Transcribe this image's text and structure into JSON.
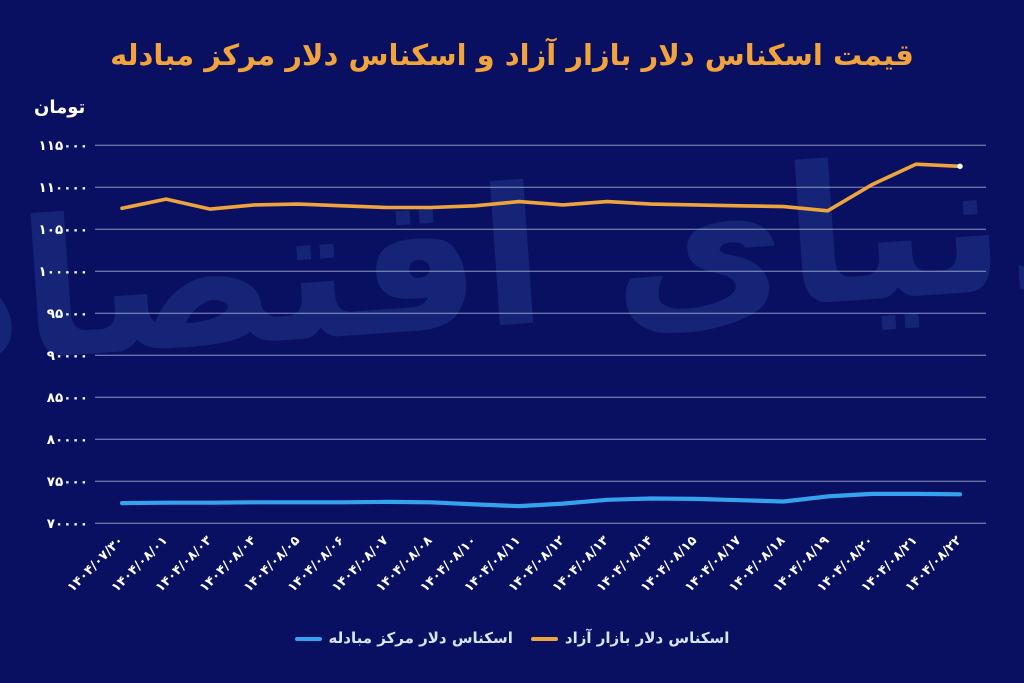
{
  "page": {
    "background": "#0A1061"
  },
  "header": {
    "title": "قیمت اسکناس دلار بازار آزاد و اسکناس دلار مرکز مبادله",
    "title_color": "#F2A43C"
  },
  "watermark": {
    "text": "دنیای اقتصاد",
    "color": "#18277A"
  },
  "chart_data": {
    "type": "line",
    "title": "قیمت اسکناس دلار بازار آزاد و اسکناس دلار مرکز مبادله",
    "xlabel": "",
    "ylabel": "تومان",
    "categories": [
      "۱۴۰۴/۰۷/۳۰",
      "۱۴۰۴/۰۸/۰۱",
      "۱۴۰۴/۰۸/۰۳",
      "۱۴۰۴/۰۸/۰۴",
      "۱۴۰۴/۰۸/۰۵",
      "۱۴۰۴/۰۸/۰۶",
      "۱۴۰۴/۰۸/۰۷",
      "۱۴۰۴/۰۸/۰۸",
      "۱۴۰۴/۰۸/۱۰",
      "۱۴۰۴/۰۸/۱۱",
      "۱۴۰۴/۰۸/۱۲",
      "۱۴۰۴/۰۸/۱۳",
      "۱۴۰۴/۰۸/۱۴",
      "۱۴۰۴/۰۸/۱۵",
      "۱۴۰۴/۰۸/۱۷",
      "۱۴۰۴/۰۸/۱۸",
      "۱۴۰۴/۰۸/۱۹",
      "۱۴۰۴/۰۸/۲۰",
      "۱۴۰۴/۰۸/۲۱",
      "۱۴۰۴/۰۸/۲۲"
    ],
    "series": [
      {
        "name": "اسکناس دلار بازار آزاد",
        "color": "#EDA43C",
        "values": [
          107500,
          108600,
          107400,
          107900,
          108000,
          107800,
          107600,
          107600,
          107800,
          108300,
          107900,
          108300,
          108000,
          107900,
          107800,
          107700,
          107200,
          110300,
          112750,
          112500
        ]
      },
      {
        "name": "اسکناس دلار مرکز مبادله",
        "color": "#35A2EF",
        "values": [
          72400,
          72450,
          72450,
          72500,
          72500,
          72500,
          72550,
          72500,
          72250,
          72050,
          72350,
          72800,
          72950,
          72900,
          72750,
          72600,
          73200,
          73500,
          73500,
          73450
        ]
      }
    ],
    "ylim": [
      70000,
      115000
    ],
    "y_ticks": [
      115000,
      110000,
      105000,
      100000,
      95000,
      90000,
      85000,
      80000,
      75000,
      70000
    ],
    "y_tick_labels": [
      "۱۱۵۰۰۰",
      "۱۱۰۰۰۰",
      "۱۰۵۰۰۰",
      "۱۰۰۰۰۰",
      "۹۵۰۰۰",
      "۹۰۰۰۰",
      "۸۵۰۰۰",
      "۸۰۰۰۰",
      "۷۵۰۰۰",
      "۷۰۰۰۰"
    ],
    "grid": true,
    "grid_color": "#B9C3DE",
    "tick_color": "#FFFFFF",
    "legend_position": "bottom"
  }
}
